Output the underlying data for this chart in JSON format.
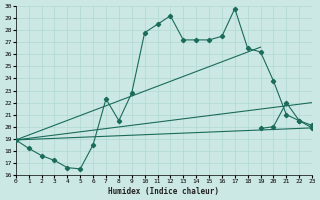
{
  "xlabel": "Humidex (Indice chaleur)",
  "xlim": [
    0,
    23
  ],
  "ylim": [
    16,
    30
  ],
  "yticks": [
    16,
    17,
    18,
    19,
    20,
    21,
    22,
    23,
    24,
    25,
    26,
    27,
    28,
    29,
    30
  ],
  "xticks": [
    0,
    1,
    2,
    3,
    4,
    5,
    6,
    7,
    8,
    9,
    10,
    11,
    12,
    13,
    14,
    15,
    16,
    17,
    18,
    19,
    20,
    21,
    22,
    23
  ],
  "background_color": "#cce8e4",
  "grid_color": "#b0d8d2",
  "line_color": "#1a6b5a",
  "main_series_x": [
    0,
    1,
    2,
    3,
    4,
    5,
    6,
    7,
    8,
    9,
    10,
    11,
    12,
    13,
    14,
    15,
    16,
    17,
    18,
    19,
    20,
    21,
    22,
    23
  ],
  "main_series_y": [
    18.9,
    18.2,
    17.6,
    17.2,
    16.6,
    16.5,
    18.5,
    22.3,
    20.5,
    22.8,
    27.8,
    28.5,
    29.2,
    27.2,
    27.2,
    27.2,
    27.5,
    29.8,
    26.5,
    26.2,
    23.8,
    21.0,
    20.5,
    20.1
  ],
  "diag1": {
    "x": [
      0,
      19
    ],
    "y": [
      18.9,
      26.6
    ]
  },
  "diag2": {
    "x": [
      0,
      23
    ],
    "y": [
      18.9,
      22.0
    ]
  },
  "diag3": {
    "x": [
      0,
      23
    ],
    "y": [
      18.9,
      19.9
    ]
  },
  "lower_seg_x": [
    19,
    20,
    21,
    22,
    23
  ],
  "lower_seg_y": [
    19.85,
    20.0,
    22.0,
    20.5,
    19.9
  ]
}
